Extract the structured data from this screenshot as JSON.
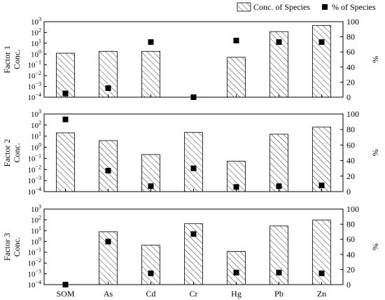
{
  "chart_data": {
    "type": "bar",
    "categories": [
      "SOM",
      "As",
      "Cd",
      "Cr",
      "Hg",
      "Pb",
      "Zn"
    ],
    "legend": {
      "bar_label": "Conc. of Species",
      "marker_label": "% of Species",
      "placement": "top-right"
    },
    "y_left": {
      "scale": "log",
      "ylim_exp": [
        -4,
        3
      ],
      "tick_exponents": [
        -4,
        -3,
        -2,
        -1,
        0,
        1,
        2,
        3
      ]
    },
    "y_right": {
      "label": "%",
      "ylim": [
        0,
        100
      ],
      "ticks": [
        0,
        20,
        40,
        60,
        80,
        100
      ]
    },
    "bar_pattern": "diagonal-hatch",
    "panels": [
      {
        "name": "Factor 1",
        "ylabel_line1": "Factor 1",
        "ylabel_line2": "Conc.",
        "conc": [
          1.2,
          1.8,
          1.8,
          0.0001,
          0.5,
          120,
          450
        ],
        "percent": [
          5,
          12,
          73,
          0,
          75,
          73,
          73
        ]
      },
      {
        "name": "Factor 2",
        "ylabel_line1": "Factor 2",
        "ylabel_line2": "Conc.",
        "conc": [
          20,
          4,
          0.22,
          22,
          0.055,
          15,
          65
        ],
        "percent": [
          93,
          27,
          7,
          30,
          6,
          7,
          8
        ]
      },
      {
        "name": "Factor 3",
        "ylabel_line1": "Factor 3",
        "ylabel_line2": "Conc.",
        "conc": [
          0.0001,
          8,
          0.45,
          45,
          0.12,
          28,
          95
        ],
        "percent": [
          0,
          57,
          15,
          67,
          16,
          16,
          15
        ]
      }
    ]
  }
}
